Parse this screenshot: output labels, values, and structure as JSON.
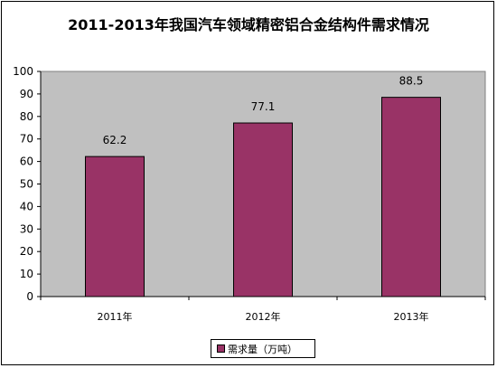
{
  "chart_data": {
    "type": "bar",
    "title": "2011-2013年我国汽车领域精密铝合金结构件需求情况",
    "categories": [
      "2011年",
      "2012年",
      "2013年"
    ],
    "series": [
      {
        "name": "需求量（万吨）",
        "values": [
          62.2,
          77.1,
          88.5
        ],
        "labels": [
          "62.2",
          "77.1",
          "88.5"
        ]
      }
    ],
    "ylim": [
      0,
      100
    ],
    "yticks": [
      "0",
      "10",
      "20",
      "30",
      "40",
      "50",
      "60",
      "70",
      "80",
      "90",
      "100"
    ],
    "grid": false,
    "legend": "bottom",
    "colors": {
      "bar": "#993366",
      "plot_background": "#c0c0c0"
    }
  }
}
